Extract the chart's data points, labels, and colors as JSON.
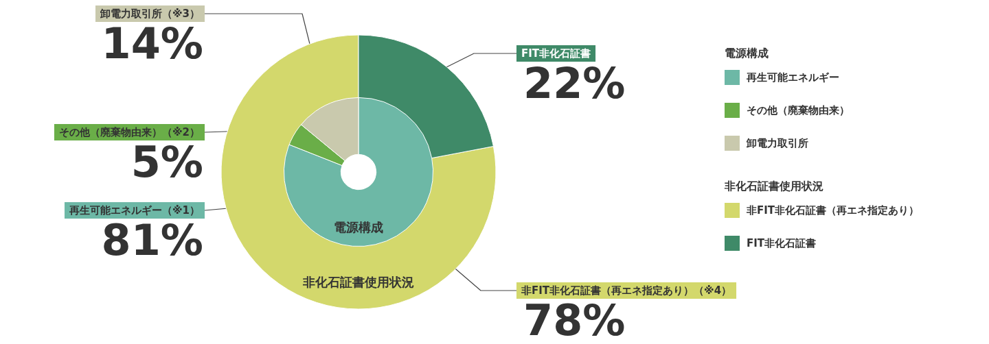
{
  "chart_data": [
    {
      "type": "donut",
      "title": "電源構成",
      "legend_title": "電源構成",
      "legend": "right",
      "categories": [
        "再生可能エネルギー",
        "その他（廃棄物由来）",
        "卸電力取引所"
      ],
      "values": [
        81,
        5,
        14
      ],
      "colors": [
        "#6db8a6",
        "#6aae48",
        "#c9c9ad"
      ],
      "value_labels": [
        "81%",
        "5%",
        "14%"
      ],
      "annotations": [
        "再生可能エネルギー（※1）",
        "その他（廃棄物由来）（※2）",
        "卸電力取引所（※3）"
      ]
    },
    {
      "type": "donut",
      "title": "非化石証書使用状況",
      "legend_title": "非化石証書使用状況",
      "legend": "right",
      "categories": [
        "非FIT非化石証書（再エネ指定あり）",
        "FIT非化石証書"
      ],
      "values": [
        78,
        22
      ],
      "colors": [
        "#d3d86c",
        "#3f8a68"
      ],
      "value_labels": [
        "78%",
        "22%"
      ],
      "annotations": [
        "非FIT非化石証書（再エネ指定あり）（※4）",
        "FIT非化石証書"
      ]
    }
  ]
}
